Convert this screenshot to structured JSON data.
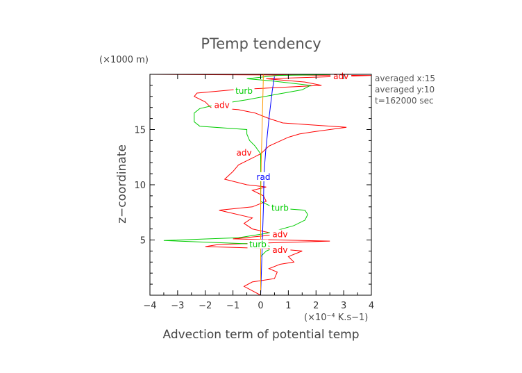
{
  "chart_data": {
    "type": "line",
    "title": "PTemp tendency",
    "xlabel": "Advection term of potential temp",
    "xunit": "(×10⁻⁴ K.s−1)",
    "ylabel": "z−coordinate",
    "yunit": "(×1000 m)",
    "xlim": [
      -4,
      4
    ],
    "ylim": [
      0,
      20
    ],
    "xticks": [
      -4,
      -3,
      -2,
      -1,
      0,
      1,
      2,
      3,
      4
    ],
    "yticks": [
      5,
      10,
      15
    ],
    "info_lines": [
      "averaged  x:15",
      "averaged  y:10",
      "t=162000 sec"
    ],
    "grid": false,
    "series": [
      {
        "name": "adv",
        "color": "#ff0000",
        "points": [
          [
            0,
            0
          ],
          [
            -0.6,
            0.8
          ],
          [
            -0.3,
            1.2
          ],
          [
            0.5,
            1.5
          ],
          [
            0.6,
            2.1
          ],
          [
            0.3,
            2.4
          ],
          [
            0.7,
            2.8
          ],
          [
            1.2,
            3.0
          ],
          [
            1.0,
            3.5
          ],
          [
            1.5,
            4.0
          ],
          [
            0.6,
            4.2
          ],
          [
            -2.0,
            4.4
          ],
          [
            -1.5,
            4.6
          ],
          [
            2.5,
            4.9
          ],
          [
            -1.0,
            5.1
          ],
          [
            0.6,
            5.5
          ],
          [
            -0.3,
            6.0
          ],
          [
            -0.6,
            6.5
          ],
          [
            -0.3,
            7.0
          ],
          [
            -1.5,
            7.7
          ],
          [
            -0.3,
            8.0
          ],
          [
            0.2,
            8.5
          ],
          [
            0.1,
            9.0
          ],
          [
            -0.3,
            9.5
          ],
          [
            0.2,
            9.8
          ],
          [
            -0.5,
            10.0
          ],
          [
            -1.3,
            10.5
          ],
          [
            -1.0,
            11.2
          ],
          [
            -0.8,
            11.8
          ],
          [
            -0.4,
            12.3
          ],
          [
            0,
            12.8
          ],
          [
            0.3,
            13.5
          ],
          [
            1.0,
            14.3
          ],
          [
            1.4,
            14.6
          ],
          [
            1.9,
            14.8
          ],
          [
            3.1,
            15.2
          ],
          [
            0.8,
            15.6
          ],
          [
            0.3,
            16.0
          ],
          [
            -0.2,
            16.5
          ],
          [
            -0.8,
            16.8
          ],
          [
            -1.8,
            17.0
          ],
          [
            -2.0,
            17.5
          ],
          [
            -2.4,
            18.0
          ],
          [
            -2.3,
            18.3
          ],
          [
            -1.0,
            18.6
          ],
          [
            2.2,
            19.0
          ],
          [
            1.6,
            19.3
          ],
          [
            0.2,
            19.6
          ],
          [
            4.0,
            19.9
          ],
          [
            -4.0,
            20.0
          ]
        ]
      },
      {
        "name": "turb",
        "color": "#00cc00",
        "points": [
          [
            0,
            0
          ],
          [
            0,
            3.5
          ],
          [
            0.2,
            4.0
          ],
          [
            0.5,
            4.3
          ],
          [
            0.1,
            4.6
          ],
          [
            -3.5,
            4.95
          ],
          [
            -0.8,
            5.2
          ],
          [
            0.2,
            5.6
          ],
          [
            1.2,
            6.3
          ],
          [
            1.6,
            6.8
          ],
          [
            1.7,
            7.3
          ],
          [
            1.6,
            7.7
          ],
          [
            0.5,
            7.9
          ],
          [
            0,
            8.5
          ],
          [
            0,
            12.8
          ],
          [
            -0.2,
            13.5
          ],
          [
            -0.4,
            14.0
          ],
          [
            -0.5,
            14.6
          ],
          [
            -0.5,
            15.0
          ],
          [
            -2.2,
            15.3
          ],
          [
            -2.4,
            15.7
          ],
          [
            -2.4,
            16.5
          ],
          [
            -2.2,
            16.9
          ],
          [
            -1.5,
            17.3
          ],
          [
            -0.5,
            17.7
          ],
          [
            0.6,
            18.2
          ],
          [
            1.5,
            18.6
          ],
          [
            1.8,
            19.0
          ],
          [
            0.4,
            19.4
          ],
          [
            -0.5,
            19.6
          ],
          [
            0.6,
            19.9
          ],
          [
            3.0,
            20.0
          ]
        ]
      },
      {
        "name": "rad",
        "color": "#0000ff",
        "points": [
          [
            0,
            0
          ],
          [
            0.05,
            4
          ],
          [
            0.1,
            8
          ],
          [
            0.12,
            11
          ],
          [
            0.18,
            13
          ],
          [
            0.3,
            16
          ],
          [
            0.42,
            18.5
          ],
          [
            0.5,
            19.8
          ]
        ]
      },
      {
        "name": "",
        "color": "#ff9900",
        "points": [
          [
            0,
            0
          ],
          [
            0,
            8
          ],
          [
            0.02,
            12
          ],
          [
            0.05,
            15
          ],
          [
            0.08,
            18
          ],
          [
            0.1,
            20
          ]
        ]
      }
    ],
    "inline_labels": [
      {
        "text": "adv",
        "series": "adv",
        "x": 2.9,
        "y": 19.8
      },
      {
        "text": "adv",
        "series": "adv",
        "x": -1.4,
        "y": 17.2
      },
      {
        "text": "adv",
        "series": "adv",
        "x": -0.6,
        "y": 12.9
      },
      {
        "text": "adv",
        "series": "adv",
        "x": 0.7,
        "y": 5.5
      },
      {
        "text": "adv",
        "series": "adv",
        "x": 0.7,
        "y": 4.1
      },
      {
        "text": "turb",
        "series": "turb",
        "x": -0.6,
        "y": 18.5
      },
      {
        "text": "turb",
        "series": "turb",
        "x": 0.7,
        "y": 7.9
      },
      {
        "text": "turb",
        "series": "turb",
        "x": -0.1,
        "y": 4.6
      },
      {
        "text": "rad",
        "series": "rad",
        "x": 0.1,
        "y": 10.7
      }
    ]
  }
}
